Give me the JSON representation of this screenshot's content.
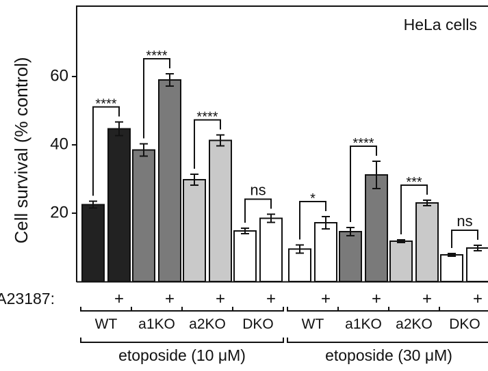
{
  "chart_data": {
    "type": "bar",
    "ylabel": "Cell survival (% control)",
    "yticks": [
      20,
      40,
      60
    ],
    "ylim": [
      0,
      80
    ],
    "legend_text": "HeLa cells",
    "treatment_label": "A23187:",
    "treatment_symbol": "+",
    "groups": [
      {
        "label": "etoposide (10 μM)",
        "genotypes": [
          {
            "label": "WT",
            "color": "#222222",
            "values": [
              22.5,
              44.7
            ],
            "errors": [
              1.0,
              2.0
            ],
            "significance": "****"
          },
          {
            "label": "a1KO",
            "color": "#7a7a7a",
            "values": [
              38.5,
              59.0
            ],
            "errors": [
              1.8,
              1.8
            ],
            "significance": "****"
          },
          {
            "label": "a2KO",
            "color": "#c9c9c9",
            "values": [
              29.8,
              41.3
            ],
            "errors": [
              1.6,
              1.6
            ],
            "significance": "****"
          },
          {
            "label": "DKO",
            "color": "#ffffff",
            "values": [
              14.8,
              18.5
            ],
            "errors": [
              0.8,
              1.2
            ],
            "significance": "ns"
          }
        ]
      },
      {
        "label": "etoposide (30 μM)",
        "genotypes": [
          {
            "label": "WT",
            "color": "#ffffff",
            "values": [
              9.5,
              17.2
            ],
            "errors": [
              1.2,
              1.8
            ],
            "significance": "*"
          },
          {
            "label": "a1KO",
            "color": "#7a7a7a",
            "values": [
              14.6,
              31.2
            ],
            "errors": [
              1.2,
              4.0
            ],
            "significance": "****"
          },
          {
            "label": "a2KO",
            "color": "#c9c9c9",
            "values": [
              11.8,
              23.0
            ],
            "errors": [
              0.4,
              0.8
            ],
            "significance": "***"
          },
          {
            "label": "DKO",
            "color": "#ffffff",
            "values": [
              7.8,
              9.8
            ],
            "errors": [
              0.4,
              0.8
            ],
            "significance": "ns"
          }
        ]
      }
    ]
  }
}
